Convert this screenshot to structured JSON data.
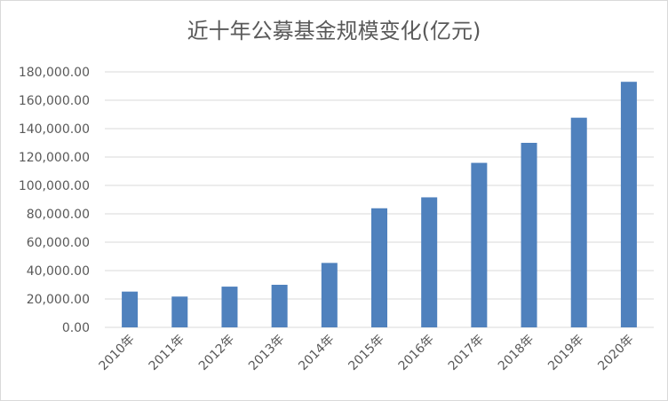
{
  "chart_data": {
    "type": "bar",
    "title": "近十年公募基金规模变化(亿元)",
    "xlabel": "",
    "ylabel": "",
    "categories": [
      "2010年",
      "2011年",
      "2012年",
      "2013年",
      "2014年",
      "2015年",
      "2016年",
      "2017年",
      "2018年",
      "2019年",
      "2020年"
    ],
    "values": [
      25200,
      21700,
      28700,
      30000,
      45400,
      83900,
      91600,
      115900,
      130000,
      147700,
      173000
    ],
    "ylim": [
      0,
      180000
    ],
    "yticks": [
      0,
      20000,
      40000,
      60000,
      80000,
      100000,
      120000,
      140000,
      160000,
      180000
    ],
    "ytick_labels": [
      "0.00",
      "20,000.00",
      "40,000.00",
      "60,000.00",
      "80,000.00",
      "100,000.00",
      "120,000.00",
      "140,000.00",
      "160,000.00",
      "180,000.00"
    ],
    "grid": true,
    "legend": "none",
    "bar_color": "#4f81bd",
    "grid_color": "#d9d9d9"
  }
}
